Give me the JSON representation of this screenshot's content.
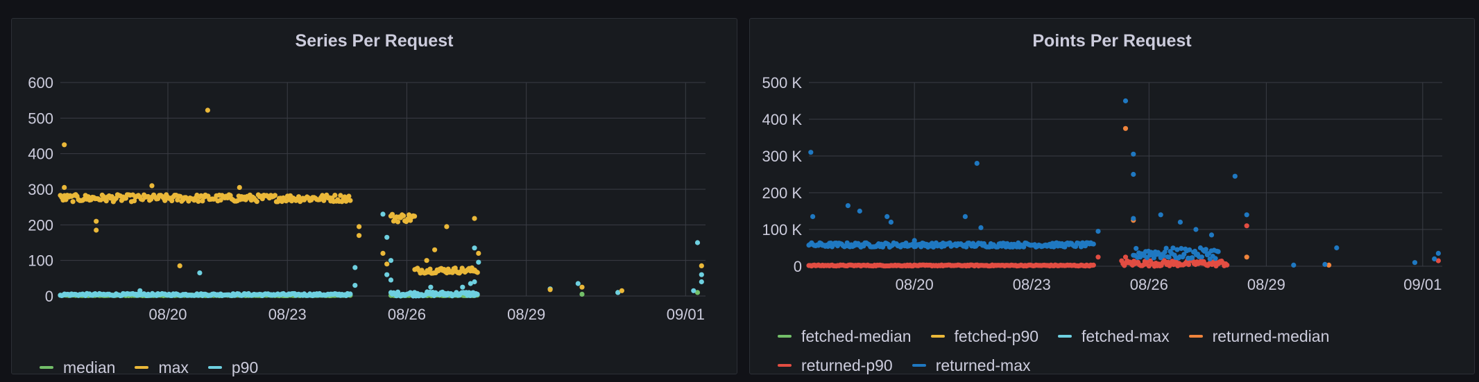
{
  "panels": [
    {
      "title": "Series Per Request",
      "legend": [
        {
          "name": "median",
          "color": "#73bf69"
        },
        {
          "name": "max",
          "color": "#eab839"
        },
        {
          "name": "p90",
          "color": "#6ed0e0"
        }
      ]
    },
    {
      "title": "Points Per Request",
      "legend": [
        {
          "name": "fetched-median",
          "color": "#73bf69"
        },
        {
          "name": "fetched-p90",
          "color": "#eab839"
        },
        {
          "name": "fetched-max",
          "color": "#6ed0e0"
        },
        {
          "name": "returned-median",
          "color": "#ef843c"
        },
        {
          "name": "returned-p90",
          "color": "#e24d42"
        },
        {
          "name": "returned-max",
          "color": "#1f78c1"
        }
      ]
    }
  ],
  "chart_data": [
    {
      "type": "scatter",
      "title": "Series Per Request",
      "x_ticks": [
        "08/20",
        "08/23",
        "08/26",
        "08/29",
        "09/01"
      ],
      "x_tick_days": [
        20,
        23,
        26,
        29,
        33
      ],
      "xlim_days": [
        17.3,
        33.5
      ],
      "yticks": [
        "0",
        "100",
        "200",
        "300",
        "400",
        "500",
        "600"
      ],
      "ylim": [
        0,
        600
      ],
      "grid": true,
      "legend_placement": "bottom-left",
      "series": [
        {
          "name": "max",
          "color": "#eab839",
          "segments": [
            {
              "x": [
                17.3,
                24.6
              ],
              "base": 275,
              "jitter": 10
            },
            {
              "x": [
                25.6,
                26.2
              ],
              "base": 220,
              "jitter": 12
            },
            {
              "x": [
                26.2,
                27.8
              ],
              "base": 72,
              "jitter": 8
            }
          ],
          "points": [
            [
              17.4,
              425
            ],
            [
              17.4,
              305
            ],
            [
              18.2,
              185
            ],
            [
              18.2,
              210
            ],
            [
              19.6,
              310
            ],
            [
              21.0,
              522
            ],
            [
              20.3,
              85
            ],
            [
              21.8,
              305
            ],
            [
              26.5,
              100
            ],
            [
              26.7,
              130
            ],
            [
              27.0,
              195
            ],
            [
              27.7,
              218
            ],
            [
              24.8,
              195
            ],
            [
              24.8,
              170
            ],
            [
              25.4,
              120
            ],
            [
              25.5,
              90
            ],
            [
              27.8,
              120
            ],
            [
              33.4,
              85
            ],
            [
              31.4,
              15
            ],
            [
              30.4,
              25
            ],
            [
              29.6,
              18
            ]
          ]
        },
        {
          "name": "p90",
          "color": "#6ed0e0",
          "segments": [
            {
              "x": [
                17.3,
                24.6
              ],
              "base": 4,
              "jitter": 3
            },
            {
              "x": [
                25.6,
                27.8
              ],
              "base": 6,
              "jitter": 6
            }
          ],
          "points": [
            [
              19.3,
              15
            ],
            [
              20.8,
              65
            ],
            [
              24.7,
              80
            ],
            [
              24.7,
              30
            ],
            [
              25.4,
              230
            ],
            [
              25.5,
              165
            ],
            [
              25.6,
              100
            ],
            [
              25.5,
              60
            ],
            [
              25.6,
              45
            ],
            [
              26.6,
              25
            ],
            [
              27.4,
              25
            ],
            [
              27.6,
              35
            ],
            [
              27.7,
              135
            ],
            [
              27.8,
              95
            ],
            [
              27.7,
              40
            ],
            [
              29.6,
              20
            ],
            [
              30.3,
              35
            ],
            [
              31.3,
              10
            ],
            [
              33.3,
              150
            ],
            [
              33.4,
              60
            ],
            [
              33.4,
              40
            ],
            [
              33.2,
              15
            ]
          ]
        },
        {
          "name": "median",
          "color": "#73bf69",
          "segments": [
            {
              "x": [
                17.3,
                24.6
              ],
              "base": 2,
              "jitter": 1
            },
            {
              "x": [
                25.6,
                27.8
              ],
              "base": 2,
              "jitter": 1
            }
          ],
          "points": [
            [
              30.4,
              5
            ],
            [
              31.3,
              10
            ],
            [
              33.3,
              10
            ]
          ]
        }
      ]
    },
    {
      "type": "scatter",
      "title": "Points Per Request",
      "x_ticks": [
        "08/20",
        "08/23",
        "08/26",
        "08/29",
        "09/01"
      ],
      "x_tick_days": [
        20,
        23,
        26,
        29,
        33
      ],
      "xlim_days": [
        17.3,
        33.5
      ],
      "yticks": [
        "0",
        "100 K",
        "200 K",
        "300 K",
        "400 K",
        "500 K"
      ],
      "ylim": [
        0,
        500000
      ],
      "grid": true,
      "legend_placement": "bottom-left",
      "series": [
        {
          "name": "returned-max",
          "color": "#1f78c1",
          "segments": [
            {
              "x": [
                17.3,
                24.6
              ],
              "base": 58000,
              "jitter": 6000
            },
            {
              "x": [
                25.6,
                27.8
              ],
              "base": 35000,
              "jitter": 15000
            }
          ],
          "points": [
            [
              17.35,
              310000
            ],
            [
              17.4,
              135000
            ],
            [
              18.3,
              165000
            ],
            [
              18.6,
              150000
            ],
            [
              19.3,
              135000
            ],
            [
              19.4,
              120000
            ],
            [
              20.0,
              70000
            ],
            [
              21.6,
              280000
            ],
            [
              21.3,
              135000
            ],
            [
              21.7,
              105000
            ],
            [
              24.7,
              95000
            ],
            [
              25.4,
              450000
            ],
            [
              25.6,
              305000
            ],
            [
              25.6,
              250000
            ],
            [
              25.6,
              130000
            ],
            [
              26.3,
              140000
            ],
            [
              26.8,
              120000
            ],
            [
              27.2,
              100000
            ],
            [
              27.6,
              85000
            ],
            [
              28.2,
              245000
            ],
            [
              28.5,
              140000
            ],
            [
              30.8,
              50000
            ],
            [
              32.8,
              10000
            ],
            [
              33.4,
              35000
            ],
            [
              33.3,
              20000
            ],
            [
              29.7,
              3000
            ],
            [
              30.5,
              5000
            ]
          ]
        },
        {
          "name": "returned-median",
          "color": "#ef843c",
          "segments": [],
          "points": [
            [
              25.4,
              375000
            ],
            [
              25.6,
              125000
            ],
            [
              28.5,
              25000
            ],
            [
              30.6,
              3000
            ]
          ]
        },
        {
          "name": "returned-p90",
          "color": "#e24d42",
          "segments": [
            {
              "x": [
                17.3,
                24.6
              ],
              "base": 2000,
              "jitter": 1500
            },
            {
              "x": [
                25.3,
                28.0
              ],
              "base": 8000,
              "jitter": 8000
            }
          ],
          "points": [
            [
              28.5,
              110000
            ],
            [
              25.4,
              25000
            ],
            [
              33.4,
              15000
            ],
            [
              24.7,
              25000
            ]
          ]
        },
        {
          "name": "fetched-max",
          "color": "#6ed0e0",
          "segments": [],
          "points": []
        },
        {
          "name": "fetched-p90",
          "color": "#eab839",
          "segments": [],
          "points": []
        },
        {
          "name": "fetched-median",
          "color": "#73bf69",
          "segments": [],
          "points": []
        }
      ]
    }
  ]
}
